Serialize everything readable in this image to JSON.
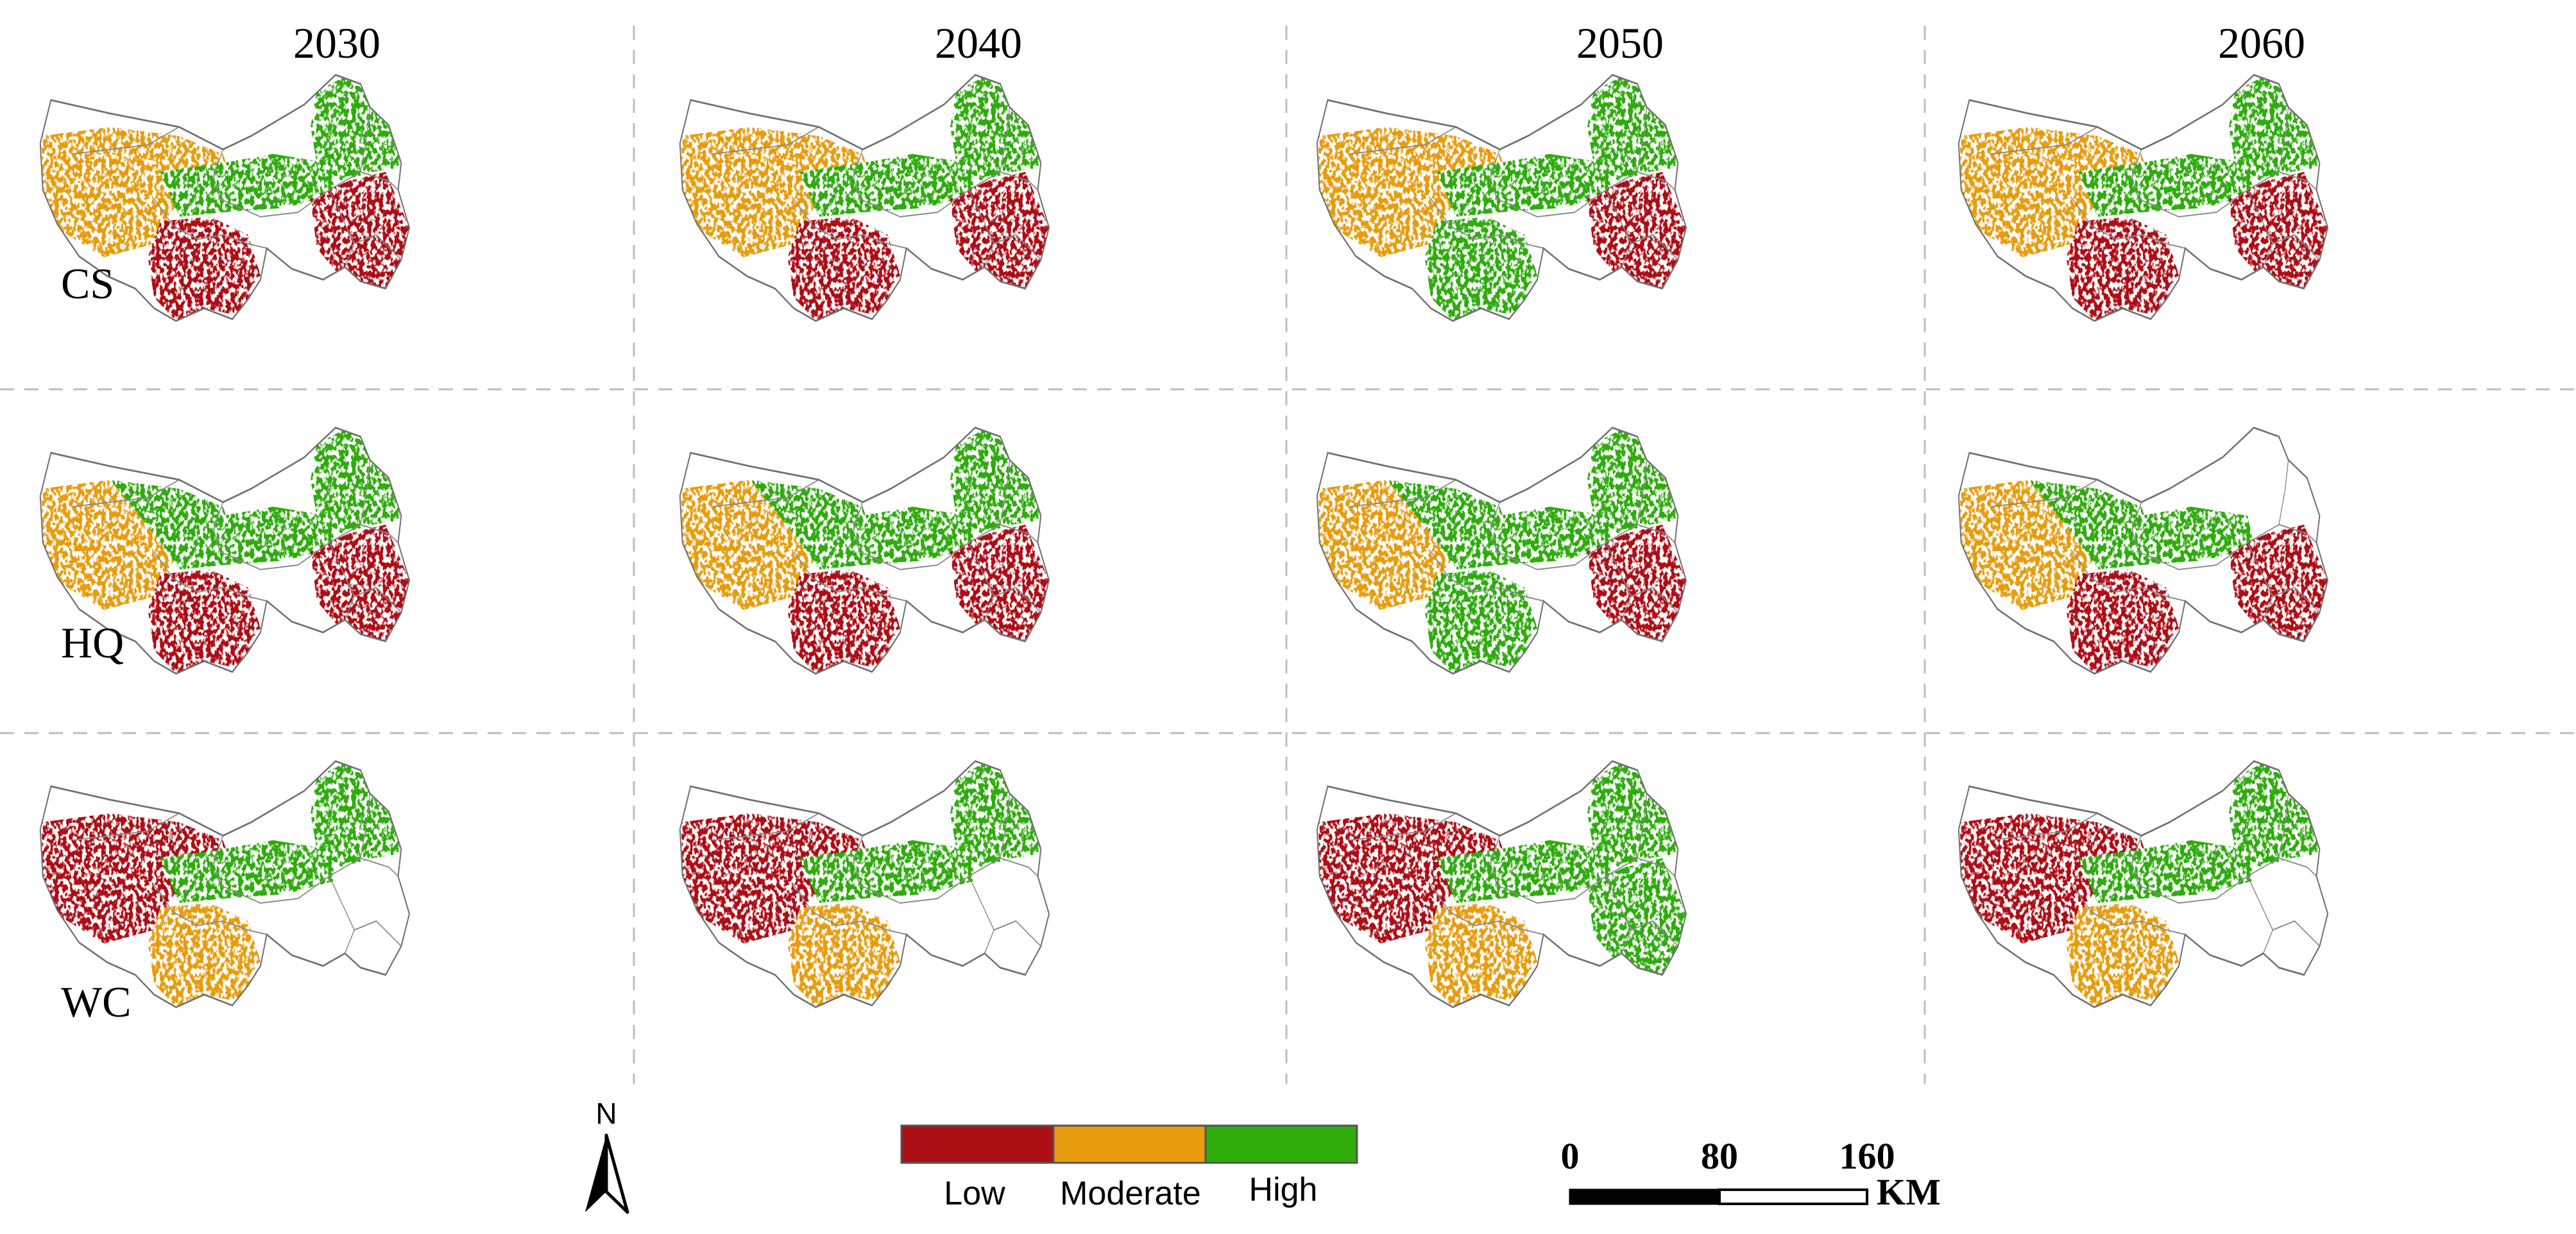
{
  "columns": [
    {
      "label": "2030"
    },
    {
      "label": "2040"
    },
    {
      "label": "2050"
    },
    {
      "label": "2060"
    }
  ],
  "rows": [
    {
      "label": "CS"
    },
    {
      "label": "HQ"
    },
    {
      "label": "WC"
    }
  ],
  "panel_levels": [
    [
      {
        "west": "moderate",
        "central_north": "moderate",
        "central_south": "low",
        "east": "low",
        "northeast": "high",
        "central_band": "high"
      },
      {
        "west": "moderate",
        "central_north": "moderate",
        "central_south": "low",
        "east": "low",
        "northeast": "high",
        "central_band": "high"
      },
      {
        "west": "moderate",
        "central_north": "moderate",
        "central_south": "high",
        "east": "low",
        "northeast": "high",
        "central_band": "high"
      },
      {
        "west": "moderate",
        "central_north": "moderate",
        "central_south": "low",
        "east": "low",
        "northeast": "high",
        "central_band": "high"
      }
    ],
    [
      {
        "west": "moderate",
        "central_north": "high",
        "central_south": "low",
        "east": "low",
        "northeast": "high",
        "central_band": "high"
      },
      {
        "west": "moderate",
        "central_north": "high",
        "central_south": "low",
        "east": "low",
        "northeast": "high",
        "central_band": "high"
      },
      {
        "west": "moderate",
        "central_north": "high",
        "central_south": "high",
        "east": "low",
        "northeast": "high",
        "central_band": "high"
      },
      {
        "west": "moderate",
        "central_north": "high",
        "central_south": "low",
        "east": "low",
        "northeast": "none",
        "central_band": "high"
      }
    ],
    [
      {
        "west": "low",
        "central_north": "low",
        "central_south": "moderate",
        "east": "none",
        "northeast": "high",
        "central_band": "high"
      },
      {
        "west": "low",
        "central_north": "low",
        "central_south": "moderate",
        "east": "none",
        "northeast": "high",
        "central_band": "high"
      },
      {
        "west": "low",
        "central_north": "low",
        "central_south": "moderate",
        "east": "high",
        "northeast": "high",
        "central_band": "high"
      },
      {
        "west": "low",
        "central_north": "low",
        "central_south": "moderate",
        "east": "none",
        "northeast": "high",
        "central_band": "high"
      }
    ]
  ],
  "legend": {
    "items": [
      {
        "label": "Low",
        "color": "#ad0f16"
      },
      {
        "label": "Moderate",
        "color": "#e79c0d"
      },
      {
        "label": "High",
        "color": "#2fab0c"
      }
    ]
  },
  "north_arrow": {
    "label": "N",
    "icon": "north-arrow-icon"
  },
  "scale_bar": {
    "ticks": [
      "0",
      "80",
      "160"
    ],
    "unit": "KM"
  }
}
